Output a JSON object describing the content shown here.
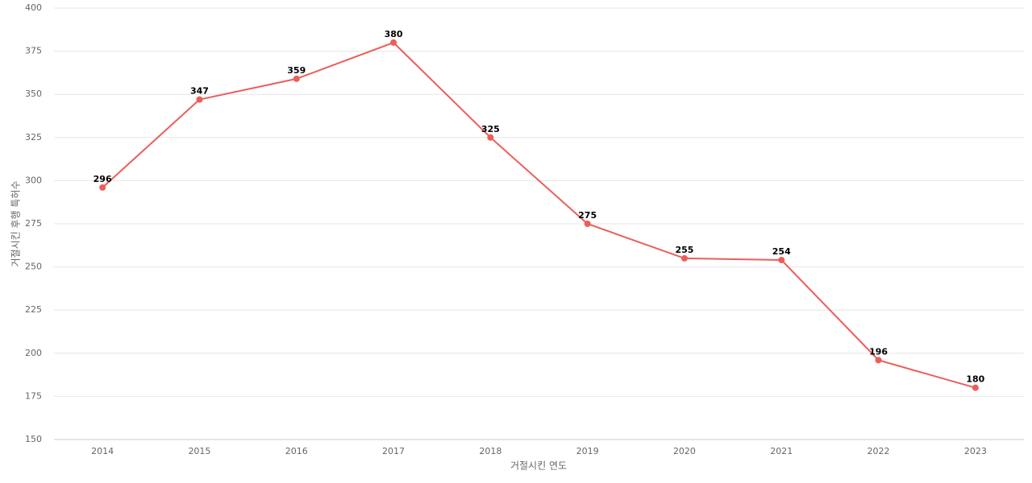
{
  "chart_data": {
    "type": "line",
    "x_label": "거절시킨 연도",
    "y_label": "거절시킨 후행 특허수",
    "categories": [
      "2014",
      "2015",
      "2016",
      "2017",
      "2018",
      "2019",
      "2020",
      "2021",
      "2022",
      "2023"
    ],
    "series": [
      {
        "name": "거절시킨 후행 특허수",
        "color": "#eb5e5a",
        "values": [
          296,
          347,
          359,
          380,
          325,
          275,
          255,
          254,
          196,
          180
        ]
      }
    ],
    "ylim": [
      150,
      400
    ],
    "yticks": [
      150,
      175,
      200,
      225,
      250,
      275,
      300,
      325,
      350,
      375,
      400
    ],
    "grid": true
  }
}
